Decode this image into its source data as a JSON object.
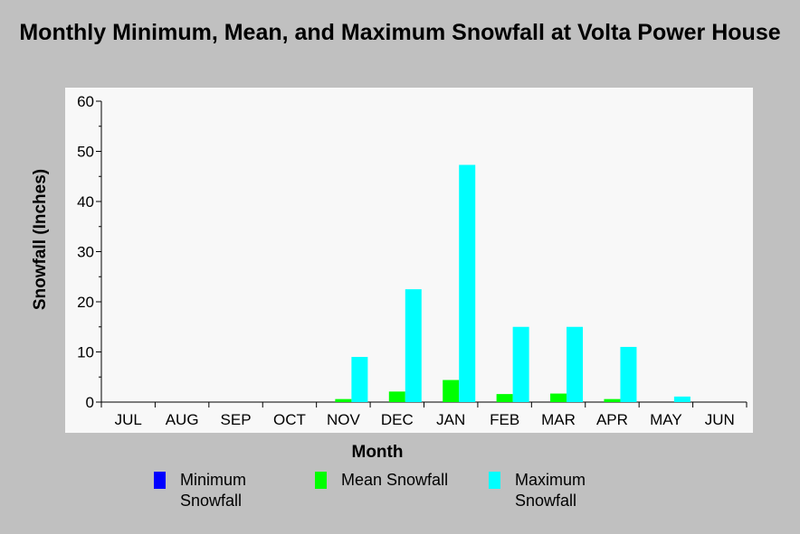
{
  "chart_data": {
    "type": "bar",
    "title": "Monthly Minimum, Mean, and Maximum Snowfall at Volta Power House",
    "xlabel": "Month",
    "ylabel": "Snowfall (Inches)",
    "ylim": [
      0,
      60
    ],
    "yticks": [
      0,
      10,
      20,
      30,
      40,
      50,
      60
    ],
    "categories": [
      "JUL",
      "AUG",
      "SEP",
      "OCT",
      "NOV",
      "DEC",
      "JAN",
      "FEB",
      "MAR",
      "APR",
      "MAY",
      "JUN"
    ],
    "series": [
      {
        "name": "Minimum Snowfall",
        "color": "#0000ff",
        "values": [
          0,
          0,
          0,
          0,
          0,
          0,
          0,
          0,
          0,
          0,
          0,
          0
        ]
      },
      {
        "name": "Mean Snowfall",
        "color": "#00ff00",
        "values": [
          0,
          0,
          0,
          0,
          0.6,
          2.1,
          4.4,
          1.6,
          1.7,
          0.6,
          0,
          0
        ]
      },
      {
        "name": "Maximum Snowfall",
        "color": "#00ffff",
        "values": [
          0,
          0,
          0,
          0,
          9,
          22.5,
          47.3,
          15,
          15,
          11,
          1.1,
          0
        ]
      }
    ],
    "grid": false,
    "legend_position": "bottom"
  },
  "legend": {
    "min_line1": "Minimum",
    "min_line2": "Snowfall",
    "mean_line1": "Mean Snowfall",
    "max_line1": "Maximum",
    "max_line2": "Snowfall"
  }
}
